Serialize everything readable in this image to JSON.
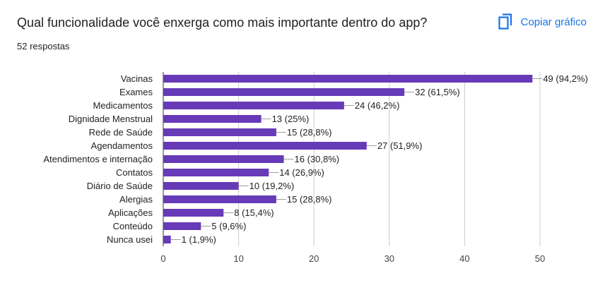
{
  "header": {
    "question": "Qual funcionalidade você enxerga como mais importante dentro do app?",
    "responses": "52 respostas",
    "copy_label": "Copiar gráfico",
    "copy_icon": "copy-icon",
    "accent_color": "#1a73e8"
  },
  "chart_data": {
    "type": "bar",
    "orientation": "horizontal",
    "categories": [
      "Vacinas",
      "Exames",
      "Medicamentos",
      "Dignidade Menstrual",
      "Rede de Saúde",
      "Agendamentos",
      "Atendimentos e internação",
      "Contatos",
      "Diário de Saúde",
      "Alergias",
      "Aplicações",
      "Conteúdo",
      "Nunca usei"
    ],
    "values": [
      49,
      32,
      24,
      13,
      15,
      27,
      16,
      14,
      10,
      15,
      8,
      5,
      1
    ],
    "data_labels": [
      "49 (94,2%)",
      "32 (61,5%)",
      "24 (46,2%)",
      "13 (25%)",
      "15 (28,8%)",
      "27 (51,9%)",
      "16 (30,8%)",
      "14 (26,9%)",
      "10 (19,2%)",
      "15 (28,8%)",
      "8 (15,4%)",
      "5 (9,6%)",
      "1 (1,9%)"
    ],
    "xlim": [
      0,
      50
    ],
    "xticks": [
      0,
      10,
      20,
      30,
      40,
      50
    ],
    "grid": true,
    "bar_color": "#673ab7"
  }
}
